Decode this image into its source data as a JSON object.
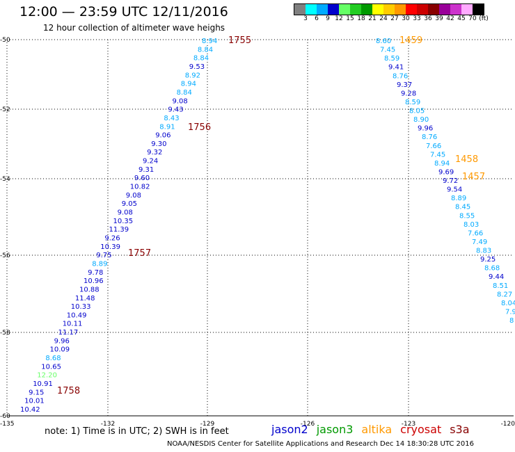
{
  "header": {
    "title": "12:00 — 23:59 UTC 12/11/2016",
    "subtitle": "12 hour collection of altimeter wave heighs"
  },
  "legend": {
    "colors": [
      "#808080",
      "#00ffff",
      "#00aaff",
      "#0000cc",
      "#66ff66",
      "#22cc22",
      "#009900",
      "#ffff00",
      "#ffcc00",
      "#ff9900",
      "#ff0000",
      "#cc0000",
      "#880000",
      "#990099",
      "#cc33cc",
      "#ffaaff",
      "#000000"
    ],
    "labels": [
      "3",
      "6",
      "9",
      "12",
      "15",
      "18",
      "21",
      "24",
      "27",
      "30",
      "33",
      "36",
      "39",
      "42",
      "45",
      "70",
      "(ft)"
    ]
  },
  "axes": {
    "lon_labels": [
      "-135",
      "-132",
      "-129",
      "-126",
      "-123",
      "-120"
    ],
    "lat_labels": [
      "-50",
      "-52",
      "-54",
      "-56",
      "-58",
      "-60"
    ]
  },
  "tracks": [
    {
      "points": [
        {
          "v": "8.94",
          "c": "#00aaff"
        },
        {
          "v": "8.84",
          "c": "#00aaff"
        },
        {
          "v": "8.84",
          "c": "#00aaff"
        },
        {
          "v": "9.53",
          "c": "#0000cc"
        },
        {
          "v": "8.92",
          "c": "#00aaff"
        },
        {
          "v": "8.94",
          "c": "#00aaff"
        },
        {
          "v": "8.84",
          "c": "#00aaff"
        },
        {
          "v": "9.08",
          "c": "#0000cc"
        },
        {
          "v": "9.43",
          "c": "#0000cc"
        },
        {
          "v": "8.43",
          "c": "#00aaff"
        },
        {
          "v": "8.91",
          "c": "#00aaff"
        },
        {
          "v": "9.06",
          "c": "#0000cc"
        },
        {
          "v": "9.30",
          "c": "#0000cc"
        },
        {
          "v": "9.32",
          "c": "#0000cc"
        },
        {
          "v": "9.24",
          "c": "#0000cc"
        },
        {
          "v": "9.31",
          "c": "#0000cc"
        },
        {
          "v": "9.60",
          "c": "#0000cc"
        },
        {
          "v": "10.82",
          "c": "#0000cc"
        },
        {
          "v": "9.08",
          "c": "#0000cc"
        },
        {
          "v": "9.05",
          "c": "#0000cc"
        },
        {
          "v": "9.08",
          "c": "#0000cc"
        },
        {
          "v": "10.35",
          "c": "#0000cc"
        },
        {
          "v": "11.39",
          "c": "#0000cc"
        },
        {
          "v": "9.26",
          "c": "#0000cc"
        },
        {
          "v": "10.39",
          "c": "#0000cc"
        },
        {
          "v": "9.75",
          "c": "#0000cc"
        },
        {
          "v": "8.89",
          "c": "#00aaff"
        },
        {
          "v": "9.78",
          "c": "#0000cc"
        },
        {
          "v": "10.96",
          "c": "#0000cc"
        },
        {
          "v": "10.88",
          "c": "#0000cc"
        },
        {
          "v": "11.48",
          "c": "#0000cc"
        },
        {
          "v": "10.33",
          "c": "#0000cc"
        },
        {
          "v": "10.49",
          "c": "#0000cc"
        },
        {
          "v": "10.11",
          "c": "#0000cc"
        },
        {
          "v": "11.17",
          "c": "#0000cc"
        },
        {
          "v": "9.96",
          "c": "#0000cc"
        },
        {
          "v": "10.09",
          "c": "#0000cc"
        },
        {
          "v": "8.68",
          "c": "#00aaff"
        },
        {
          "v": "10.65",
          "c": "#0000cc"
        },
        {
          "v": "12.20",
          "c": "#66ff66"
        },
        {
          "v": "10.91",
          "c": "#0000cc"
        },
        {
          "v": "9.15",
          "c": "#0000cc"
        },
        {
          "v": "10.01",
          "c": "#0000cc"
        },
        {
          "v": "10.42",
          "c": "#0000cc"
        }
      ],
      "times": [
        {
          "label": "1755",
          "c": "#880000"
        },
        {
          "label": "1756",
          "c": "#880000"
        },
        {
          "label": "1757",
          "c": "#880000"
        },
        {
          "label": "1758",
          "c": "#880000"
        }
      ]
    },
    {
      "points": [
        {
          "v": "8.60",
          "c": "#00aaff"
        },
        {
          "v": "7.45",
          "c": "#00aaff"
        },
        {
          "v": "8.59",
          "c": "#00aaff"
        },
        {
          "v": "9.41",
          "c": "#0000cc"
        },
        {
          "v": "8.76",
          "c": "#00aaff"
        },
        {
          "v": "9.37",
          "c": "#0000cc"
        },
        {
          "v": "9.28",
          "c": "#0000cc"
        },
        {
          "v": "8.59",
          "c": "#00aaff"
        },
        {
          "v": "8.05",
          "c": "#00aaff"
        },
        {
          "v": "8.90",
          "c": "#00aaff"
        },
        {
          "v": "9.96",
          "c": "#0000cc"
        },
        {
          "v": "8.76",
          "c": "#00aaff"
        },
        {
          "v": "7.66",
          "c": "#00aaff"
        },
        {
          "v": "7.45",
          "c": "#00aaff"
        },
        {
          "v": "8.94",
          "c": "#00aaff"
        },
        {
          "v": "9.69",
          "c": "#0000cc"
        },
        {
          "v": "9.72",
          "c": "#0000cc"
        },
        {
          "v": "9.54",
          "c": "#0000cc"
        },
        {
          "v": "8.89",
          "c": "#00aaff"
        },
        {
          "v": "8.45",
          "c": "#00aaff"
        },
        {
          "v": "8.55",
          "c": "#00aaff"
        },
        {
          "v": "8.03",
          "c": "#00aaff"
        },
        {
          "v": "7.66",
          "c": "#00aaff"
        },
        {
          "v": "7.49",
          "c": "#00aaff"
        },
        {
          "v": "8.83",
          "c": "#00aaff"
        },
        {
          "v": "9.25",
          "c": "#0000cc"
        },
        {
          "v": "8.68",
          "c": "#00aaff"
        },
        {
          "v": "9.44",
          "c": "#0000cc"
        },
        {
          "v": "8.51",
          "c": "#00aaff"
        },
        {
          "v": "8.27",
          "c": "#00aaff"
        },
        {
          "v": "8.04",
          "c": "#00aaff"
        },
        {
          "v": "7.9",
          "c": "#00aaff"
        },
        {
          "v": "8",
          "c": "#00aaff"
        }
      ],
      "times": [
        {
          "label": "1459",
          "c": "#ff9900"
        },
        {
          "label": "1458",
          "c": "#ff9900"
        },
        {
          "label": "1457",
          "c": "#ff9900"
        }
      ]
    }
  ],
  "footer": {
    "note": "note: 1) Time is in UTC; 2) SWH is in feet",
    "satellites": [
      {
        "name": "jason2",
        "color": "#0000cc"
      },
      {
        "name": "jason3",
        "color": "#009900"
      },
      {
        "name": "altika",
        "color": "#ff9900"
      },
      {
        "name": "cryosat",
        "color": "#cc0000"
      },
      {
        "name": "s3a",
        "color": "#880000"
      }
    ],
    "credit": "NOAA/NESDIS Center for Satellite Applications and Research    Dec 14 18:30:28 UTC 2016"
  }
}
